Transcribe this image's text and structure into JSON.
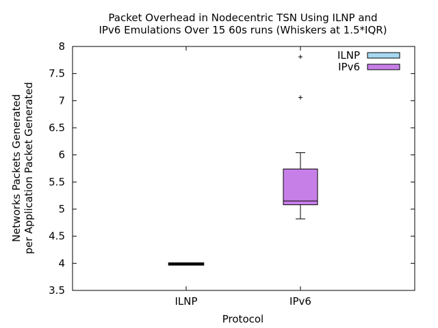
{
  "chart_data": {
    "type": "box",
    "title": "Packet Overhead in Nodecentric TSN Using ILNP and",
    "subtitle": "IPv6 Emulations Over 15 60s runs (Whiskers at 1.5*IQR)",
    "xlabel": "Protocol",
    "ylabel_line1": "Networks Packets Generated",
    "ylabel_line2": "per Application Packet Generated",
    "ylim": [
      3.5,
      8
    ],
    "yticks": [
      "3.5",
      "4",
      "4.5",
      "5",
      "5.5",
      "6",
      "6.5",
      "7",
      "7.5",
      "8"
    ],
    "categories": [
      "ILNP",
      "IPv6"
    ],
    "series": [
      {
        "name": "ILNP",
        "color": "#a6d8f0",
        "whisker_low": 3.99,
        "q1": 3.99,
        "median": 4.0,
        "q3": 4.0,
        "whisker_high": 4.0,
        "outliers": []
      },
      {
        "name": "IPv6",
        "color": "#c77fe8",
        "whisker_low": 4.82,
        "q1": 5.08,
        "median": 5.15,
        "q3": 5.74,
        "whisker_high": 6.04,
        "outliers": [
          7.06,
          7.81
        ]
      }
    ],
    "legend_position": "top-right",
    "grid": false
  }
}
